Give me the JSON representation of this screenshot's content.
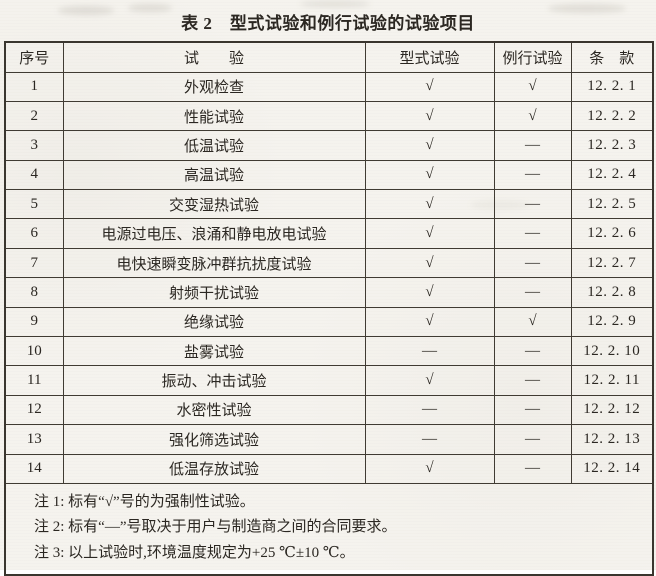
{
  "title": "表 2　型式试验和例行试验的试验项目",
  "table": {
    "headers": [
      "序号",
      "试　　验",
      "型式试验",
      "例行试验",
      "条　款"
    ],
    "rows": [
      {
        "no": "1",
        "test": "外观检查",
        "type_test": "√",
        "routine_test": "√",
        "clause": "12. 2. 1"
      },
      {
        "no": "2",
        "test": "性能试验",
        "type_test": "√",
        "routine_test": "√",
        "clause": "12. 2. 2"
      },
      {
        "no": "3",
        "test": "低温试验",
        "type_test": "√",
        "routine_test": "—",
        "clause": "12. 2. 3"
      },
      {
        "no": "4",
        "test": "高温试验",
        "type_test": "√",
        "routine_test": "—",
        "clause": "12. 2. 4"
      },
      {
        "no": "5",
        "test": "交变湿热试验",
        "type_test": "√",
        "routine_test": "—",
        "clause": "12. 2. 5"
      },
      {
        "no": "6",
        "test": "电源过电压、浪涌和静电放电试验",
        "type_test": "√",
        "routine_test": "—",
        "clause": "12. 2. 6"
      },
      {
        "no": "7",
        "test": "电快速瞬变脉冲群抗扰度试验",
        "type_test": "√",
        "routine_test": "—",
        "clause": "12. 2. 7"
      },
      {
        "no": "8",
        "test": "射频干扰试验",
        "type_test": "√",
        "routine_test": "—",
        "clause": "12. 2. 8"
      },
      {
        "no": "9",
        "test": "绝缘试验",
        "type_test": "√",
        "routine_test": "√",
        "clause": "12. 2. 9"
      },
      {
        "no": "10",
        "test": "盐雾试验",
        "type_test": "—",
        "routine_test": "—",
        "clause": "12. 2. 10"
      },
      {
        "no": "11",
        "test": "振动、冲击试验",
        "type_test": "√",
        "routine_test": "—",
        "clause": "12. 2. 11"
      },
      {
        "no": "12",
        "test": "水密性试验",
        "type_test": "—",
        "routine_test": "—",
        "clause": "12. 2. 12"
      },
      {
        "no": "13",
        "test": "强化筛选试验",
        "type_test": "—",
        "routine_test": "—",
        "clause": "12. 2. 13"
      },
      {
        "no": "14",
        "test": "低温存放试验",
        "type_test": "√",
        "routine_test": "—",
        "clause": "12. 2. 14"
      }
    ],
    "notes": [
      "注 1: 标有“√”号的为强制性试验。",
      "注 2: 标有“—”号取决于用户与制造商之间的合同要求。",
      "注 3: 以上试验时,环境温度规定为+25 ℃±10 ℃。"
    ]
  },
  "colors": {
    "paper": "#f5f3ee",
    "ink": "#2b2722",
    "table_border": "#3a362f"
  }
}
